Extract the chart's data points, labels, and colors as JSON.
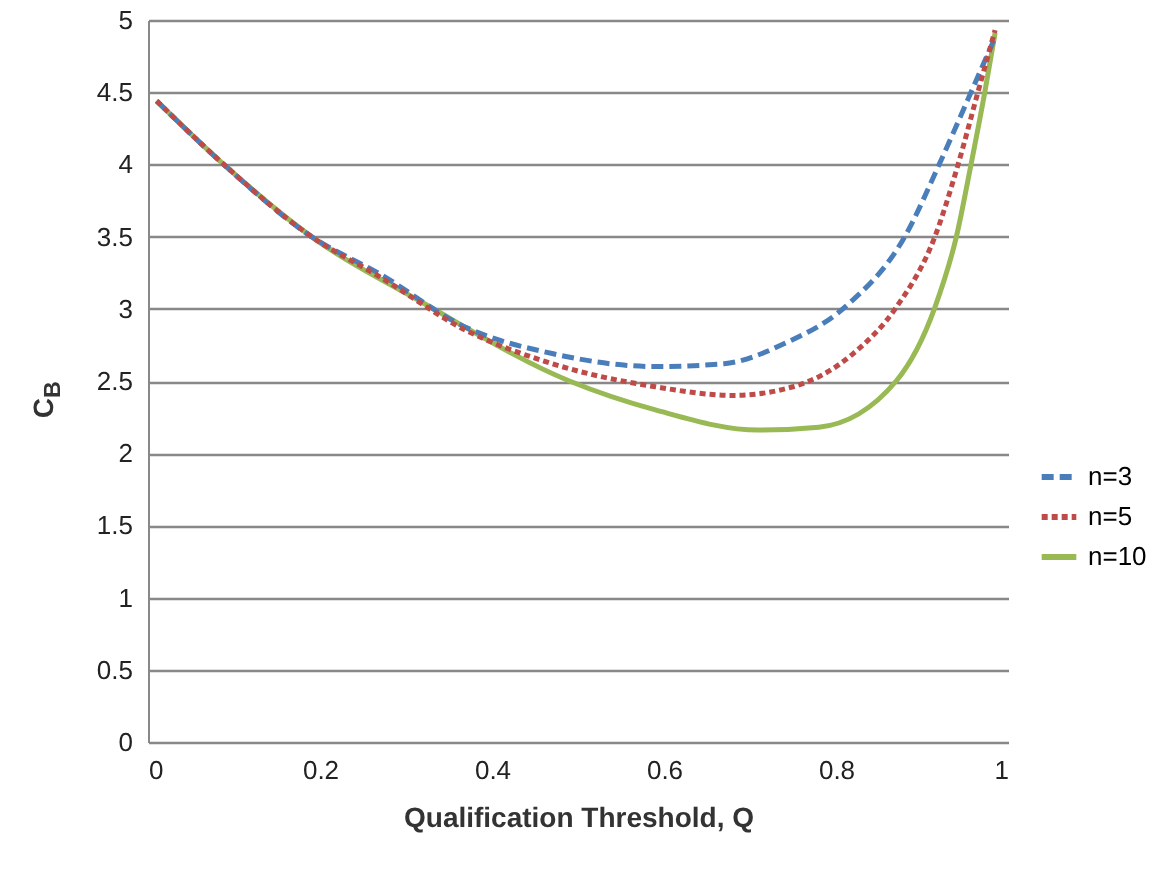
{
  "chart_data": {
    "type": "line",
    "xlabel": "Qualification Threshold, Q",
    "ylabel": "C$_{B}$",
    "xlim": [
      0,
      1
    ],
    "xticks": [
      0,
      0.2,
      0.4,
      0.6,
      0.8,
      1
    ],
    "ylim": [
      0,
      5
    ],
    "yticks": [
      0,
      0.5,
      1,
      1.5,
      2,
      2.5,
      3,
      3.5,
      4,
      4.5,
      5
    ],
    "grid": "y",
    "legend": "right",
    "series": [
      {
        "name": "n=3",
        "color": "#4a7ebb",
        "line_style": "dashed",
        "x": [
          0.01,
          0.088,
          0.19,
          0.27,
          0.37,
          0.47,
          0.59,
          0.67,
          0.74,
          0.81,
          0.88,
          0.92,
          0.957,
          0.985
        ],
        "values": [
          4.44,
          4.0,
          3.5,
          3.24,
          2.87,
          2.69,
          2.6,
          2.62,
          2.76,
          3.01,
          3.5,
          4.0,
          4.5,
          4.88
        ]
      },
      {
        "name": "n=5",
        "color": "#be4b48",
        "line_style": "dotted",
        "x": [
          0.01,
          0.088,
          0.19,
          0.27,
          0.37,
          0.47,
          0.59,
          0.68,
          0.75,
          0.82,
          0.87,
          0.915,
          0.942,
          0.965,
          0.985
        ],
        "values": [
          4.44,
          4.0,
          3.5,
          3.22,
          2.85,
          2.62,
          2.46,
          2.4,
          2.46,
          2.69,
          3.01,
          3.5,
          4.0,
          4.5,
          4.93
        ]
      },
      {
        "name": "n=10",
        "color": "#98b954",
        "line_style": "solid",
        "x": [
          0.01,
          0.088,
          0.19,
          0.32,
          0.49,
          0.59,
          0.71,
          0.78,
          0.87,
          0.915,
          0.94,
          0.957,
          0.973,
          0.985
        ],
        "values": [
          4.44,
          4.0,
          3.5,
          3.04,
          2.5,
          2.3,
          2.16,
          2.18,
          2.5,
          3.01,
          3.5,
          4.0,
          4.5,
          4.91
        ]
      }
    ]
  }
}
